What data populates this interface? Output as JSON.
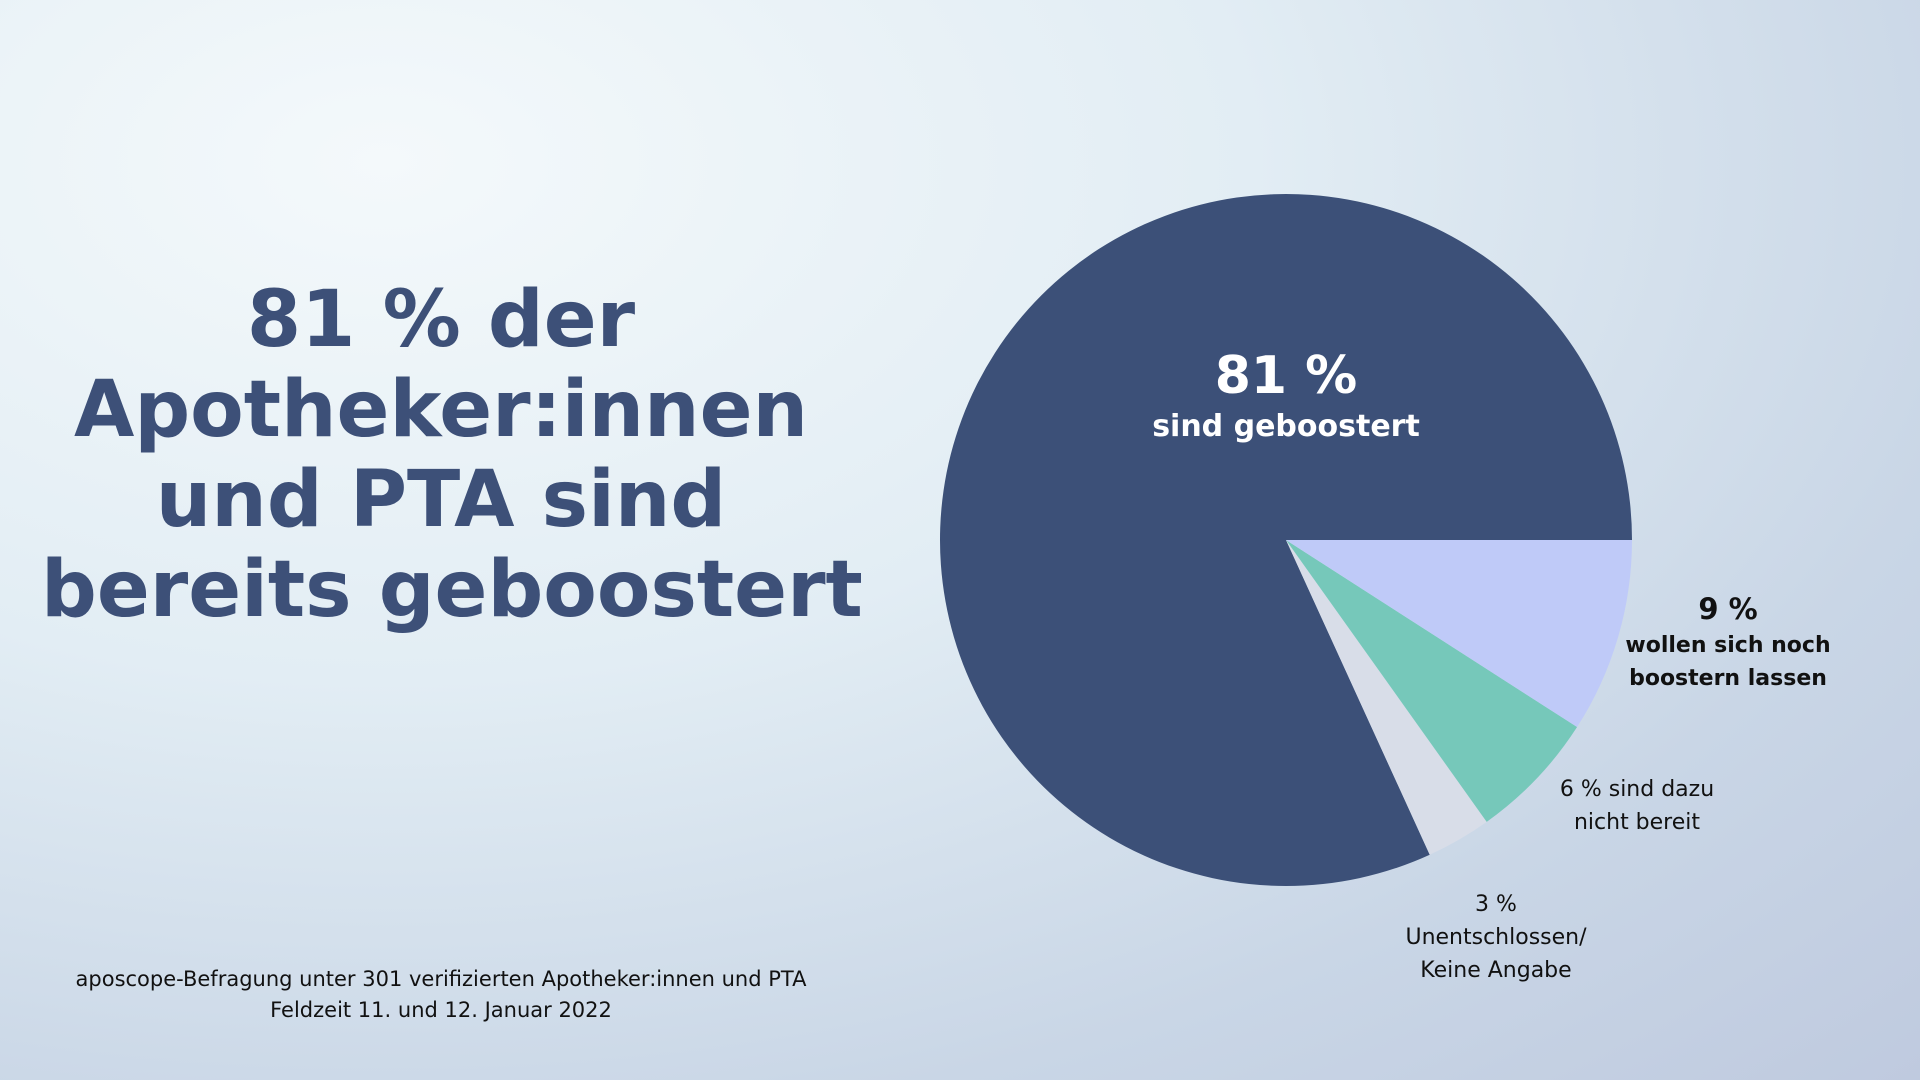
{
  "chart_data": {
    "type": "pie",
    "title": [
      "81 % der",
      "Apotheker:innen",
      "und PTA sind",
      "bereits geboostert"
    ],
    "footnote": [
      "aposcope-Befragung unter 301 verifizierten Apotheker:innen und PTA",
      "Feldzeit 11. und 12. Januar 2022"
    ],
    "categories": [
      "sind geboostert",
      "Unentschlossen/ Keine Angabe",
      "sind dazu nicht bereit",
      "wollen sich noch boostern lassen"
    ],
    "values": [
      81,
      3,
      6,
      9
    ],
    "value_labels": [
      "81 %",
      "3 %",
      "6 %",
      "9 %"
    ],
    "colors": [
      "#3c5078",
      "#d8dde8",
      "#76c8ba",
      "#bfcaf8"
    ]
  }
}
